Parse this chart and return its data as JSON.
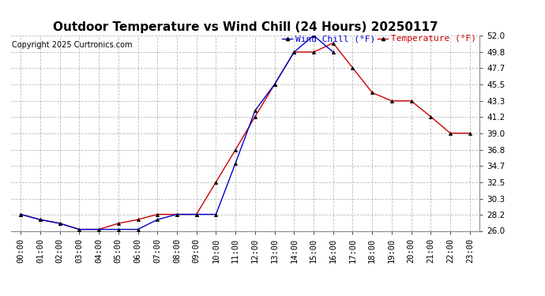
{
  "title": "Outdoor Temperature vs Wind Chill (24 Hours) 20250117",
  "copyright": "Copyright 2025 Curtronics.com",
  "legend_windchill": "Wind Chill (°F)",
  "legend_temp": "Temperature (°F)",
  "hours": [
    "00:00",
    "01:00",
    "02:00",
    "03:00",
    "04:00",
    "05:00",
    "06:00",
    "07:00",
    "08:00",
    "09:00",
    "10:00",
    "11:00",
    "12:00",
    "13:00",
    "14:00",
    "15:00",
    "16:00",
    "17:00",
    "18:00",
    "19:00",
    "20:00",
    "21:00",
    "22:00",
    "23:00"
  ],
  "temperature": [
    28.2,
    27.5,
    27.0,
    26.2,
    26.2,
    27.0,
    27.5,
    28.2,
    28.2,
    28.2,
    32.5,
    36.8,
    41.2,
    45.5,
    49.8,
    49.8,
    51.0,
    47.7,
    44.4,
    43.3,
    43.3,
    41.2,
    39.0,
    39.0
  ],
  "windchill": [
    28.2,
    27.5,
    27.0,
    26.2,
    26.2,
    26.2,
    26.2,
    27.5,
    28.2,
    28.2,
    28.2,
    35.0,
    42.0,
    45.5,
    49.8,
    52.0,
    49.8,
    null,
    null,
    null,
    null,
    null,
    null,
    null
  ],
  "temp_color": "#cc0000",
  "windchill_color": "#0000cc",
  "marker": "^",
  "ylim_min": 26.0,
  "ylim_max": 52.0,
  "yticks": [
    26.0,
    28.2,
    30.3,
    32.5,
    34.7,
    36.8,
    39.0,
    41.2,
    43.3,
    45.5,
    47.7,
    49.8,
    52.0
  ],
  "grid_color": "#bbbbbb",
  "background_color": "#ffffff",
  "title_fontsize": 11,
  "tick_fontsize": 7.5,
  "legend_fontsize": 8,
  "copyright_fontsize": 7
}
